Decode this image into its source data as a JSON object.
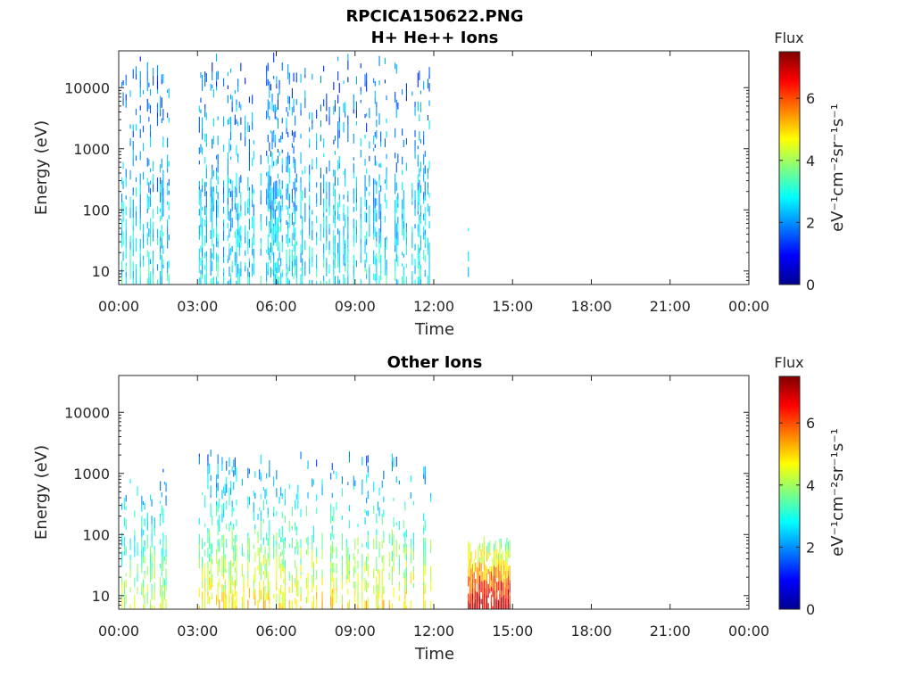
{
  "figure": {
    "title_line1": "RPCICA150622.PNG"
  },
  "colormap": [
    "#00008f",
    "#0000ff",
    "#0080ff",
    "#00ffff",
    "#80ff80",
    "#ffff00",
    "#ff8000",
    "#ff0000",
    "#800000"
  ],
  "chart_data": [
    {
      "type": "heatmap",
      "title": "H+ He++ Ions",
      "xlabel": "Time",
      "ylabel": "Energy (eV)",
      "yscale": "log",
      "ylim": [
        6,
        40000
      ],
      "xlim": [
        0,
        24
      ],
      "x_ticks": [
        "00:00",
        "03:00",
        "06:00",
        "09:00",
        "12:00",
        "15:00",
        "18:00",
        "21:00",
        "00:00"
      ],
      "y_ticks": [
        "10",
        "100",
        "1000",
        "10000"
      ],
      "y_tick_values": [
        10,
        100,
        1000,
        10000
      ],
      "colorbar": {
        "label": "Flux",
        "units": "eV⁻¹cm⁻²sr⁻¹s⁻¹",
        "range": [
          0,
          7.5
        ],
        "ticks": [
          "0",
          "2",
          "4",
          "6"
        ],
        "tick_values": [
          0,
          2,
          4,
          6
        ]
      },
      "data_blocks": [
        {
          "t_start": 0.1,
          "t_end": 1.9,
          "e_min": 6,
          "e_max": 30000,
          "flux_low_energy": 2.8,
          "flux_high_energy": 1.6
        },
        {
          "t_start": 3.0,
          "t_end": 11.9,
          "e_min": 6,
          "e_max": 30000,
          "flux_low_energy": 2.8,
          "flux_high_energy": 1.6
        },
        {
          "t_start": 13.3,
          "t_end": 13.4,
          "e_min": 6,
          "e_max": 80,
          "flux_low_energy": 2.5,
          "flux_high_energy": 2.5
        }
      ]
    },
    {
      "type": "heatmap",
      "title": "Other Ions",
      "xlabel": "Time",
      "ylabel": "Energy (eV)",
      "yscale": "log",
      "ylim": [
        6,
        40000
      ],
      "xlim": [
        0,
        24
      ],
      "x_ticks": [
        "00:00",
        "03:00",
        "06:00",
        "09:00",
        "12:00",
        "15:00",
        "18:00",
        "21:00",
        "00:00"
      ],
      "y_ticks": [
        "10",
        "100",
        "1000",
        "10000"
      ],
      "y_tick_values": [
        10,
        100,
        1000,
        10000
      ],
      "colorbar": {
        "label": "Flux",
        "units": "eV⁻¹cm⁻²sr⁻¹s⁻¹",
        "range": [
          0,
          7.5
        ],
        "ticks": [
          "0",
          "2",
          "4",
          "6"
        ],
        "tick_values": [
          0,
          2,
          4,
          6
        ]
      },
      "data_blocks": [
        {
          "t_start": 0.1,
          "t_end": 1.9,
          "e_min": 6,
          "e_max": 1500,
          "flux_low_energy": 4.2,
          "flux_high_energy": 1.8
        },
        {
          "t_start": 3.0,
          "t_end": 11.9,
          "e_min": 6,
          "e_max": 2000,
          "flux_low_energy": 4.8,
          "flux_high_energy": 1.8
        },
        {
          "t_start": 13.3,
          "t_end": 14.9,
          "e_min": 6,
          "e_max": 80,
          "flux_low_energy": 7.0,
          "flux_high_energy": 3.5
        }
      ]
    }
  ]
}
